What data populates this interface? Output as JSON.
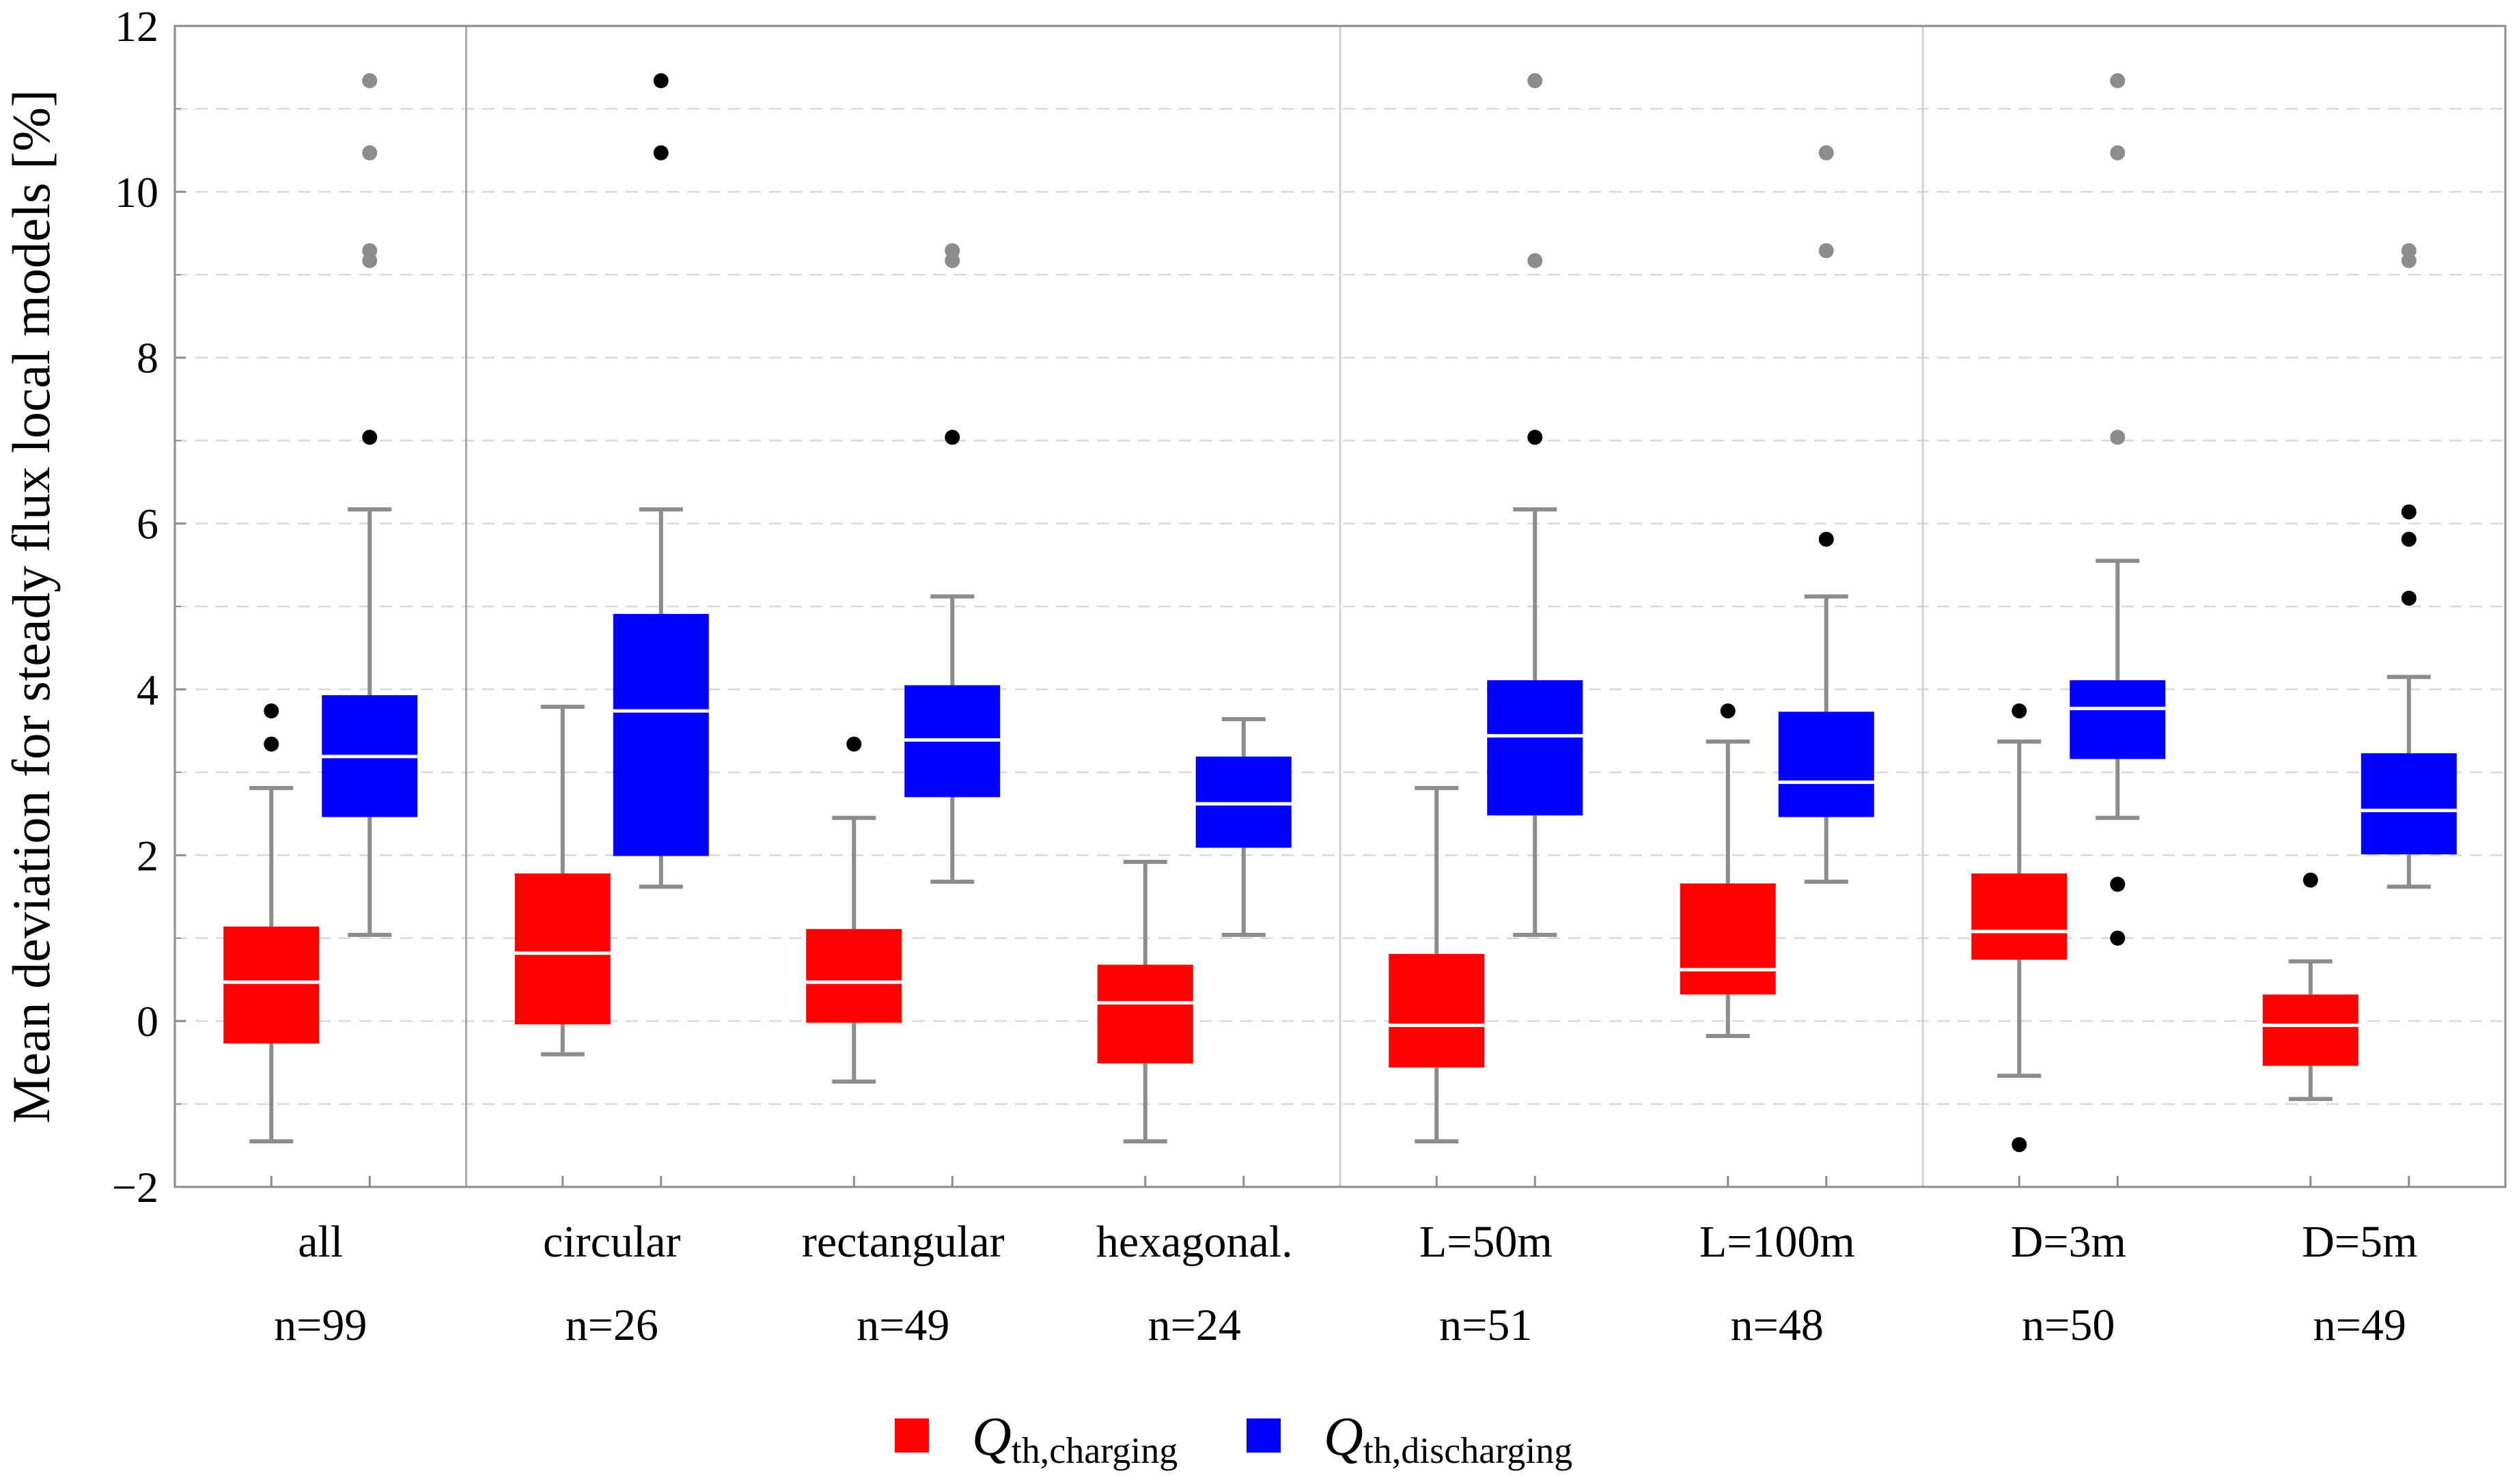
{
  "chart_data": {
    "type": "boxplot",
    "ylabel": "Mean deviation for steady flux local models [%]",
    "ylim": [
      -2,
      12
    ],
    "yticks": [
      -2,
      0,
      2,
      4,
      6,
      8,
      10,
      12
    ],
    "yticklabels": [
      "−2",
      "0",
      "2",
      "4",
      "6",
      "8",
      "10",
      "12"
    ],
    "grid": "dashed horizontal",
    "colors": {
      "charging": "#ff0000",
      "discharging": "#0000ff",
      "whisker": "#8c8c8c",
      "median": "#ffffff",
      "outlier_black": "#000000",
      "outlier_gray": "#8c8c8c",
      "separator": "#aaaaaa",
      "grid": "#d9d9d9"
    },
    "legend": {
      "position": "bottom-center",
      "entries": [
        {
          "series": "charging",
          "main": "Q",
          "sub": "th,charging"
        },
        {
          "series": "discharging",
          "main": "Q",
          "sub": "th,discharging"
        }
      ]
    },
    "separators_after_group": [
      0,
      3,
      5
    ],
    "groups": [
      {
        "label": "all",
        "n": "n=99",
        "charging": {
          "whisker_low": -1.45,
          "q1": -0.27,
          "median": 0.47,
          "q3": 1.14,
          "whisker_high": 2.81,
          "outliers": [
            {
              "v": 3.34,
              "c": "black"
            },
            {
              "v": 3.74,
              "c": "black"
            }
          ]
        },
        "discharging": {
          "whisker_low": 1.04,
          "q1": 2.46,
          "median": 3.19,
          "q3": 3.93,
          "whisker_high": 6.17,
          "outliers": [
            {
              "v": 7.04,
              "c": "black"
            },
            {
              "v": 9.17,
              "c": "gray"
            },
            {
              "v": 9.29,
              "c": "gray"
            },
            {
              "v": 10.47,
              "c": "gray"
            },
            {
              "v": 11.34,
              "c": "gray"
            }
          ]
        }
      },
      {
        "label": "circular",
        "n": "n=26",
        "charging": {
          "whisker_low": -0.4,
          "q1": -0.04,
          "median": 0.82,
          "q3": 1.78,
          "whisker_high": 3.79,
          "outliers": []
        },
        "discharging": {
          "whisker_low": 1.62,
          "q1": 1.99,
          "median": 3.74,
          "q3": 4.91,
          "whisker_high": 6.17,
          "outliers": [
            {
              "v": 10.47,
              "c": "black"
            },
            {
              "v": 11.34,
              "c": "black"
            }
          ]
        }
      },
      {
        "label": "rectangular",
        "n": "n=49",
        "charging": {
          "whisker_low": -0.73,
          "q1": -0.02,
          "median": 0.47,
          "q3": 1.11,
          "whisker_high": 2.45,
          "outliers": [
            {
              "v": 3.34,
              "c": "black"
            }
          ]
        },
        "discharging": {
          "whisker_low": 1.68,
          "q1": 2.7,
          "median": 3.39,
          "q3": 4.05,
          "whisker_high": 5.12,
          "outliers": [
            {
              "v": 7.04,
              "c": "black"
            },
            {
              "v": 9.17,
              "c": "gray"
            },
            {
              "v": 9.29,
              "c": "gray"
            }
          ]
        }
      },
      {
        "label": "hexagonal.",
        "n": "n=24",
        "charging": {
          "whisker_low": -1.45,
          "q1": -0.51,
          "median": 0.22,
          "q3": 0.68,
          "whisker_high": 1.92,
          "outliers": []
        },
        "discharging": {
          "whisker_low": 1.04,
          "q1": 2.09,
          "median": 2.62,
          "q3": 3.19,
          "whisker_high": 3.64,
          "outliers": []
        }
      },
      {
        "label": "L=50m",
        "n": "n=51",
        "charging": {
          "whisker_low": -1.45,
          "q1": -0.56,
          "median": -0.05,
          "q3": 0.81,
          "whisker_high": 2.81,
          "outliers": []
        },
        "discharging": {
          "whisker_low": 1.04,
          "q1": 2.48,
          "median": 3.44,
          "q3": 4.11,
          "whisker_high": 6.17,
          "outliers": [
            {
              "v": 7.04,
              "c": "black"
            },
            {
              "v": 9.17,
              "c": "gray"
            },
            {
              "v": 11.34,
              "c": "gray"
            }
          ]
        }
      },
      {
        "label": "L=100m",
        "n": "n=48",
        "charging": {
          "whisker_low": -0.18,
          "q1": 0.32,
          "median": 0.62,
          "q3": 1.66,
          "whisker_high": 3.37,
          "outliers": [
            {
              "v": 3.74,
              "c": "black"
            }
          ]
        },
        "discharging": {
          "whisker_low": 1.68,
          "q1": 2.46,
          "median": 2.88,
          "q3": 3.73,
          "whisker_high": 5.12,
          "outliers": [
            {
              "v": 5.81,
              "c": "black"
            },
            {
              "v": 9.29,
              "c": "gray"
            },
            {
              "v": 10.47,
              "c": "gray"
            }
          ]
        }
      },
      {
        "label": "D=3m",
        "n": "n=50",
        "charging": {
          "whisker_low": -0.66,
          "q1": 0.74,
          "median": 1.08,
          "q3": 1.78,
          "whisker_high": 3.37,
          "outliers": [
            {
              "v": -1.49,
              "c": "black"
            },
            {
              "v": 3.74,
              "c": "black"
            }
          ]
        },
        "discharging": {
          "whisker_low": 2.45,
          "q1": 3.16,
          "median": 3.77,
          "q3": 4.11,
          "whisker_high": 5.55,
          "outliers": [
            {
              "v": 1.0,
              "c": "black"
            },
            {
              "v": 1.65,
              "c": "black"
            },
            {
              "v": 7.04,
              "c": "gray"
            },
            {
              "v": 10.47,
              "c": "gray"
            },
            {
              "v": 11.34,
              "c": "gray"
            }
          ]
        }
      },
      {
        "label": "D=5m",
        "n": "n=49",
        "charging": {
          "whisker_low": -0.94,
          "q1": -0.54,
          "median": -0.05,
          "q3": 0.32,
          "whisker_high": 0.72,
          "outliers": [
            {
              "v": 1.7,
              "c": "black"
            }
          ]
        },
        "discharging": {
          "whisker_low": 1.62,
          "q1": 2.01,
          "median": 2.54,
          "q3": 3.23,
          "whisker_high": 4.15,
          "outliers": [
            {
              "v": 5.1,
              "c": "black"
            },
            {
              "v": 5.81,
              "c": "black"
            },
            {
              "v": 6.14,
              "c": "black"
            },
            {
              "v": 9.17,
              "c": "gray"
            },
            {
              "v": 9.29,
              "c": "gray"
            }
          ]
        }
      }
    ]
  }
}
